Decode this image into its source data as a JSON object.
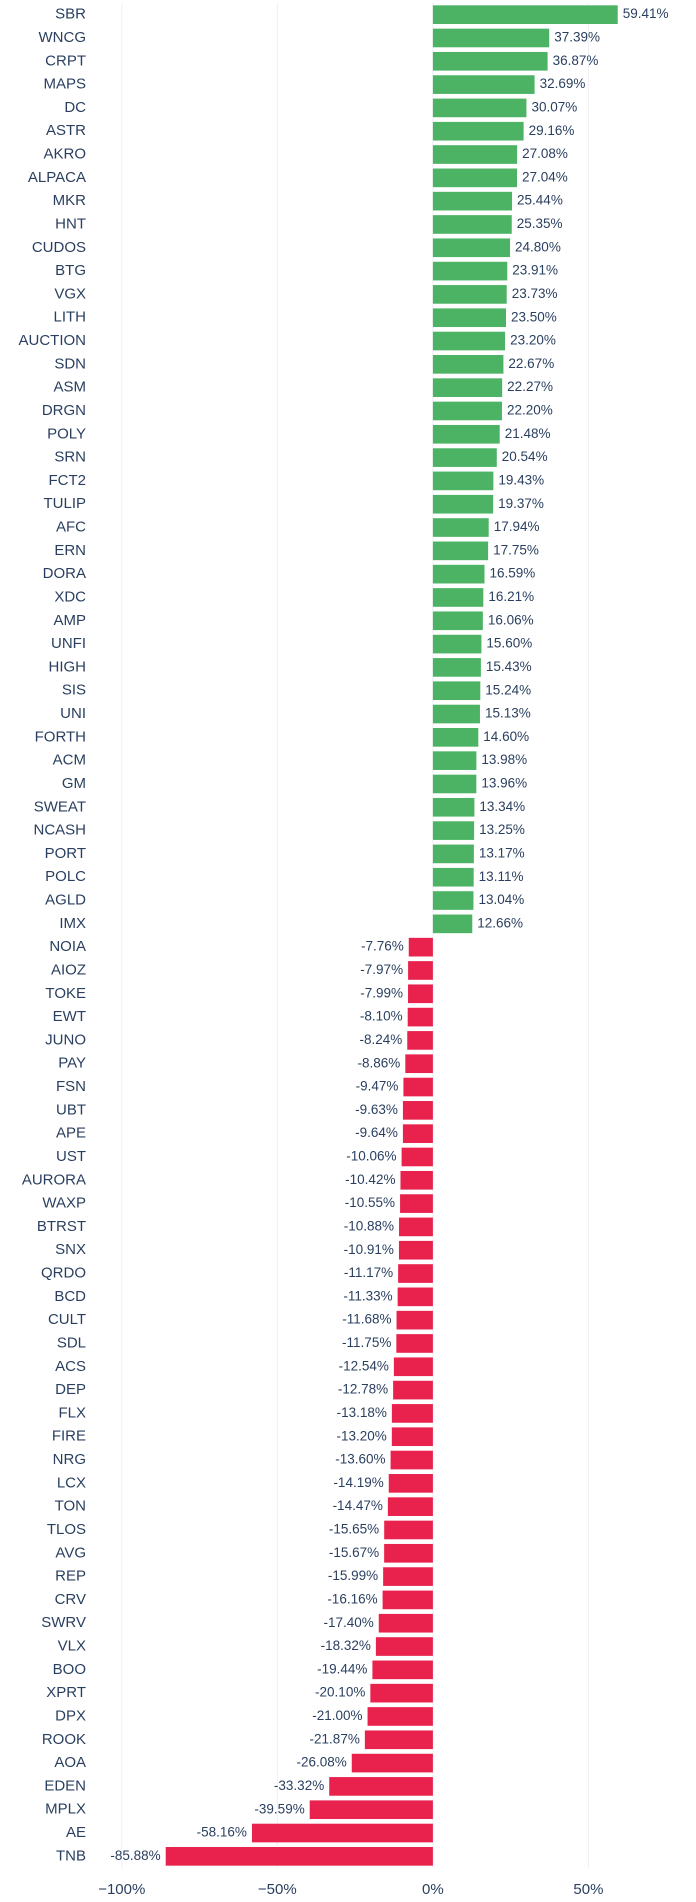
{
  "chart_data": {
    "type": "bar",
    "orientation": "horizontal",
    "categories": [
      "SBR",
      "WNCG",
      "CRPT",
      "MAPS",
      "DC",
      "ASTR",
      "AKRO",
      "ALPACA",
      "MKR",
      "HNT",
      "CUDOS",
      "BTG",
      "VGX",
      "LITH",
      "AUCTION",
      "SDN",
      "ASM",
      "DRGN",
      "POLY",
      "SRN",
      "FCT2",
      "TULIP",
      "AFC",
      "ERN",
      "DORA",
      "XDC",
      "AMP",
      "UNFI",
      "HIGH",
      "SIS",
      "UNI",
      "FORTH",
      "ACM",
      "GM",
      "SWEAT",
      "NCASH",
      "PORT",
      "POLC",
      "AGLD",
      "IMX",
      "NOIA",
      "AIOZ",
      "TOKE",
      "EWT",
      "JUNO",
      "PAY",
      "FSN",
      "UBT",
      "APE",
      "UST",
      "AURORA",
      "WAXP",
      "BTRST",
      "SNX",
      "QRDO",
      "BCD",
      "CULT",
      "SDL",
      "ACS",
      "DEP",
      "FLX",
      "FIRE",
      "NRG",
      "LCX",
      "TON",
      "TLOS",
      "AVG",
      "REP",
      "CRV",
      "SWRV",
      "VLX",
      "BOO",
      "XPRT",
      "DPX",
      "ROOK",
      "AOA",
      "EDEN",
      "MPLX",
      "AE",
      "TNB"
    ],
    "values": [
      59.41,
      37.39,
      36.87,
      32.69,
      30.07,
      29.16,
      27.08,
      27.04,
      25.44,
      25.35,
      24.8,
      23.91,
      23.73,
      23.5,
      23.2,
      22.67,
      22.27,
      22.2,
      21.48,
      20.54,
      19.43,
      19.37,
      17.94,
      17.75,
      16.59,
      16.21,
      16.06,
      15.6,
      15.43,
      15.24,
      15.13,
      14.6,
      13.98,
      13.96,
      13.34,
      13.25,
      13.17,
      13.11,
      13.04,
      12.66,
      -7.76,
      -7.97,
      -7.99,
      -8.1,
      -8.24,
      -8.86,
      -9.47,
      -9.63,
      -9.64,
      -10.06,
      -10.42,
      -10.55,
      -10.88,
      -10.91,
      -11.17,
      -11.33,
      -11.68,
      -11.75,
      -12.54,
      -12.78,
      -13.18,
      -13.2,
      -13.6,
      -14.19,
      -14.47,
      -15.65,
      -15.67,
      -15.99,
      -16.16,
      -17.4,
      -18.32,
      -19.44,
      -20.1,
      -21.0,
      -21.87,
      -26.08,
      -33.32,
      -39.59,
      -58.16,
      -85.88
    ],
    "value_labels": [
      "59.41%",
      "37.39%",
      "36.87%",
      "32.69%",
      "30.07%",
      "29.16%",
      "27.08%",
      "27.04%",
      "25.44%",
      "25.35%",
      "24.80%",
      "23.91%",
      "23.73%",
      "23.50%",
      "23.20%",
      "22.67%",
      "22.27%",
      "22.20%",
      "21.48%",
      "20.54%",
      "19.43%",
      "19.37%",
      "17.94%",
      "17.75%",
      "16.59%",
      "16.21%",
      "16.06%",
      "15.60%",
      "15.43%",
      "15.24%",
      "15.13%",
      "14.60%",
      "13.98%",
      "13.96%",
      "13.34%",
      "13.25%",
      "13.17%",
      "13.11%",
      "13.04%",
      "12.66%",
      "-7.76%",
      "-7.97%",
      "-7.99%",
      "-8.10%",
      "-8.24%",
      "-8.86%",
      "-9.47%",
      "-9.63%",
      "-9.64%",
      "-10.06%",
      "-10.42%",
      "-10.55%",
      "-10.88%",
      "-10.91%",
      "-11.17%",
      "-11.33%",
      "-11.68%",
      "-11.75%",
      "-12.54%",
      "-12.78%",
      "-13.18%",
      "-13.20%",
      "-13.60%",
      "-14.19%",
      "-14.47%",
      "-15.65%",
      "-15.67%",
      "-15.99%",
      "-16.16%",
      "-17.40%",
      "-18.32%",
      "-19.44%",
      "-20.10%",
      "-21.00%",
      "-21.87%",
      "-26.08%",
      "-33.32%",
      "-39.59%",
      "-58.16%",
      "-85.88%"
    ],
    "positive_color": "#4cb365",
    "negative_color": "#e8214d",
    "xlim": [
      -107,
      73
    ],
    "xticks": [
      {
        "value": -100,
        "label": "−100%"
      },
      {
        "value": -50,
        "label": "−50%"
      },
      {
        "value": 0,
        "label": "0%"
      },
      {
        "value": 50,
        "label": "50%"
      }
    ],
    "grid": true
  }
}
